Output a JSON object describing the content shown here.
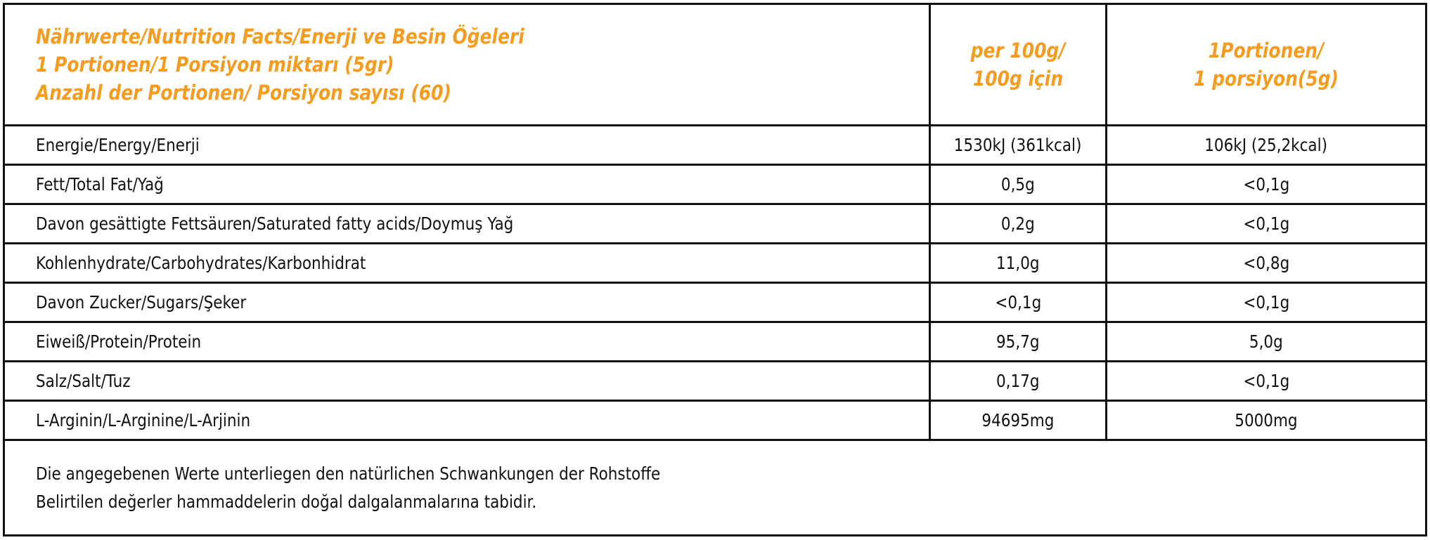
{
  "header": {
    "title_lines": [
      "Nährwerte/Nutrition Facts/Enerji ve Besin Öğeleri",
      "1 Portionen/1 Porsiyon miktarı (5gr)",
      "Anzahl der Portionen/ Porsiyon sayısı (60)"
    ],
    "col2_lines": [
      "per 100g/",
      "100g için"
    ],
    "col3_lines": [
      "1Portionen/",
      "1 porsiyon(5g)"
    ]
  },
  "colors": {
    "header_text": "#f39c1f",
    "border": "#111111"
  },
  "rows": [
    {
      "name": "Energie/Energy/Enerji",
      "per100": "1530kJ (361kcal)",
      "portion": "106kJ (25,2kcal)"
    },
    {
      "name": "Fett/Total Fat/Yağ",
      "per100": "0,5g",
      "portion": "<0,1g"
    },
    {
      "name": "Davon gesättigte Fettsäuren/Saturated fatty acids/Doymuş Yağ",
      "per100": "0,2g",
      "portion": "<0,1g"
    },
    {
      "name": "Kohlenhydrate/Carbohydrates/Karbonhidrat",
      "per100": "11,0g",
      "portion": "<0,8g"
    },
    {
      "name": "Davon Zucker/Sugars/Şeker",
      "per100": "<0,1g",
      "portion": "<0,1g"
    },
    {
      "name": "Eiweiß/Protein/Protein",
      "per100": "95,7g",
      "portion": "5,0g"
    },
    {
      "name": "Salz/Salt/Tuz",
      "per100": "0,17g",
      "portion": "<0,1g"
    },
    {
      "name": "L-Arginin/L-Arginine/L-Arjinin",
      "per100": "94695mg",
      "portion": "5000mg"
    }
  ],
  "footer": {
    "lines": [
      "Die angegebenen Werte unterliegen den natürlichen Schwankungen der Rohstoffe",
      "Belirtilen değerler hammaddelerin doğal dalgalanmalarına tabidir."
    ]
  }
}
